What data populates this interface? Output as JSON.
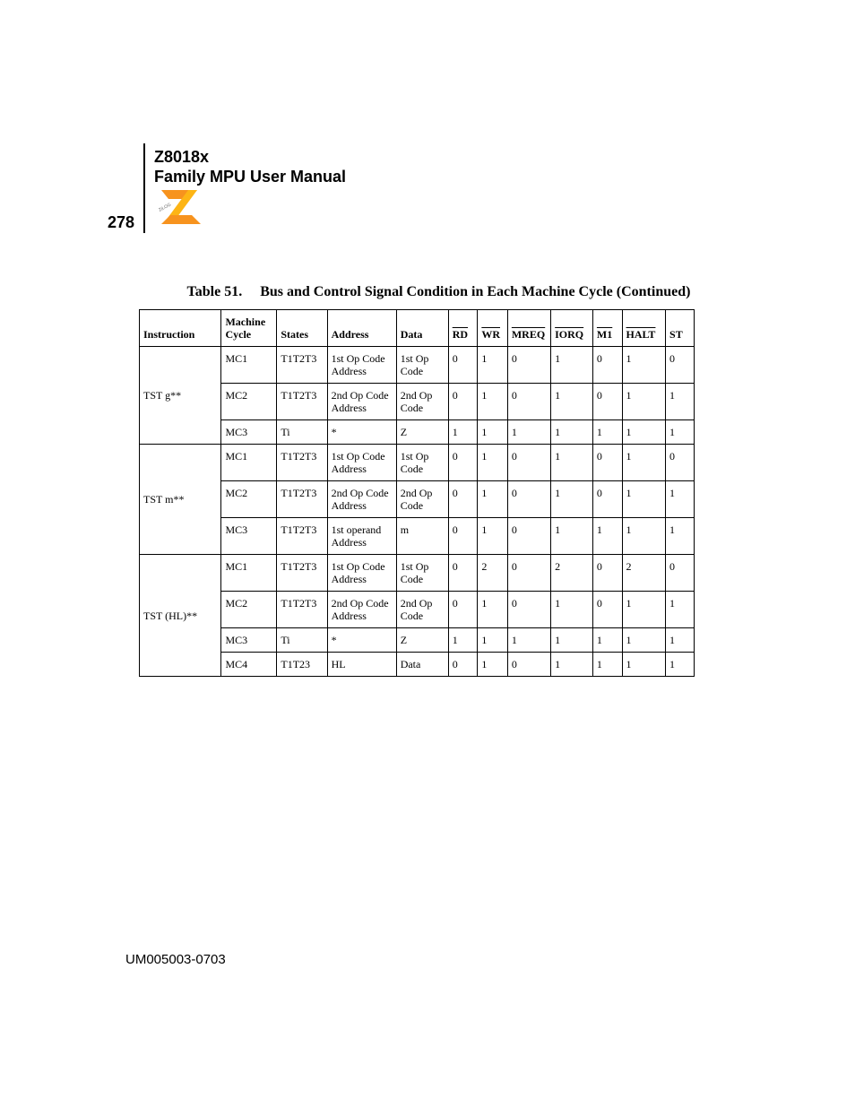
{
  "header": {
    "product_line1": "Z8018x",
    "product_line2": "Family MPU User Manual",
    "page_number": "278",
    "doc_number": "UM005003-0703",
    "logo_colors": {
      "orange": "#f7931e",
      "yellow": "#fdb515",
      "text": "#6b6b6b"
    }
  },
  "table_caption": {
    "label": "Table 51.",
    "title": "Bus and Control Signal Condition in Each Machine Cycle  (Continued)"
  },
  "columns": {
    "instruction": "Instruction",
    "machine_cycle_l1": "Machine",
    "machine_cycle_l2": "Cycle",
    "states": "States",
    "address": "Address",
    "data": "Data",
    "rd": "RD",
    "wr": "WR",
    "mreq": "MREQ",
    "iorq": "IORQ",
    "m1": "M1",
    "halt": "HALT",
    "st": "ST"
  },
  "style": {
    "font_family": "Times New Roman",
    "header_font_family": "Arial",
    "body_fontsize_pt": 9,
    "caption_fontsize_pt": 12,
    "header_fontsize_pt": 13,
    "border_color": "#000000",
    "background_color": "#ffffff",
    "text_color": "#000000"
  },
  "groups": [
    {
      "instruction": "TST g**",
      "rows": [
        {
          "mc": "MC1",
          "states": "T1T2T3",
          "address": "1st Op Code Address",
          "data": "1st Op Code",
          "rd": "0",
          "wr": "1",
          "mreq": "0",
          "iorq": "1",
          "m1": "0",
          "halt": "1",
          "st": "0"
        },
        {
          "mc": "MC2",
          "states": "T1T2T3",
          "address": "2nd Op Code Address",
          "data": "2nd Op Code",
          "rd": "0",
          "wr": "1",
          "mreq": "0",
          "iorq": "1",
          "m1": "0",
          "halt": "1",
          "st": "1"
        },
        {
          "mc": "MC3",
          "states": "Ti",
          "address": "*",
          "data": "Z",
          "rd": "1",
          "wr": "1",
          "mreq": "1",
          "iorq": "1",
          "m1": "1",
          "halt": "1",
          "st": "1"
        }
      ]
    },
    {
      "instruction": "TST m**",
      "rows": [
        {
          "mc": "MC1",
          "states": "T1T2T3",
          "address": "1st Op Code Address",
          "data": "1st Op Code",
          "rd": "0",
          "wr": "1",
          "mreq": "0",
          "iorq": "1",
          "m1": "0",
          "halt": "1",
          "st": "0"
        },
        {
          "mc": "MC2",
          "states": "T1T2T3",
          "address": "2nd Op Code Address",
          "data": "2nd Op Code",
          "rd": "0",
          "wr": "1",
          "mreq": "0",
          "iorq": "1",
          "m1": "0",
          "halt": "1",
          "st": "1"
        },
        {
          "mc": "MC3",
          "states": "T1T2T3",
          "address": "1st operand Address",
          "data": "m",
          "rd": "0",
          "wr": "1",
          "mreq": "0",
          "iorq": "1",
          "m1": "1",
          "halt": "1",
          "st": "1"
        }
      ]
    },
    {
      "instruction": "TST (HL)**",
      "rows": [
        {
          "mc": "MC1",
          "states": "T1T2T3",
          "address": "1st Op Code Address",
          "data": "1st Op Code",
          "rd": "0",
          "wr": "2",
          "mreq": "0",
          "iorq": "2",
          "m1": "0",
          "halt": "2",
          "st": "0"
        },
        {
          "mc": "MC2",
          "states": "T1T2T3",
          "address": "2nd Op Code Address",
          "data": "2nd Op Code",
          "rd": "0",
          "wr": "1",
          "mreq": "0",
          "iorq": "1",
          "m1": "0",
          "halt": "1",
          "st": "1"
        },
        {
          "mc": "MC3",
          "states": "Ti",
          "address": "*",
          "data": "Z",
          "rd": "1",
          "wr": "1",
          "mreq": "1",
          "iorq": "1",
          "m1": "1",
          "halt": "1",
          "st": "1"
        },
        {
          "mc": "MC4",
          "states": "T1T23",
          "address": "HL",
          "data": "Data",
          "rd": "0",
          "wr": "1",
          "mreq": "0",
          "iorq": "1",
          "m1": "1",
          "halt": "1",
          "st": "1"
        }
      ]
    }
  ]
}
